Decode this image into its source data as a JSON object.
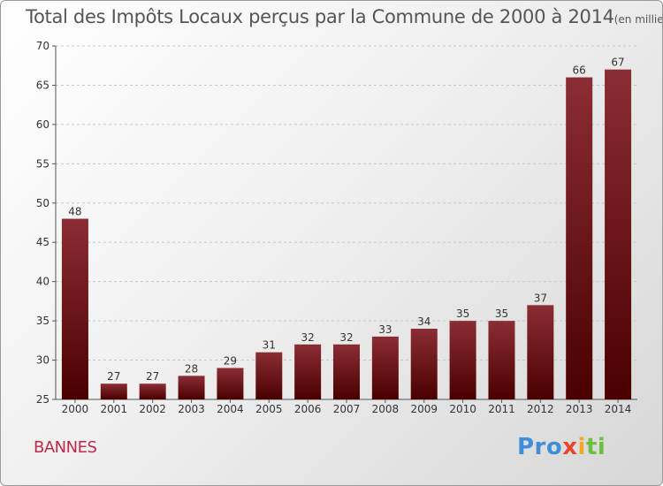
{
  "title": "Total des Impôts Locaux perçus par la Commune de 2000 à 2014",
  "unit": "(en milliers d'€)",
  "commune": "BANNES",
  "logo": [
    "Pro",
    "x",
    "i",
    "ti"
  ],
  "colors": {
    "bar_light": "#8b2d34",
    "bar_dark": "#4a0000",
    "grid": "#c8c8c8",
    "commune": "#c0294a"
  },
  "chart_data": {
    "type": "bar",
    "title": "Total des Impôts Locaux perçus par la Commune de 2000 à 2014",
    "categories": [
      "2000",
      "2001",
      "2002",
      "2003",
      "2004",
      "2005",
      "2006",
      "2007",
      "2008",
      "2009",
      "2010",
      "2011",
      "2012",
      "2013",
      "2014"
    ],
    "values": [
      48,
      27,
      27,
      28,
      29,
      31,
      32,
      32,
      33,
      34,
      35,
      35,
      37,
      66,
      67
    ],
    "ylim": [
      25,
      70
    ],
    "yticks": [
      25,
      30,
      35,
      40,
      45,
      50,
      55,
      60,
      65,
      70
    ],
    "grid": true
  }
}
